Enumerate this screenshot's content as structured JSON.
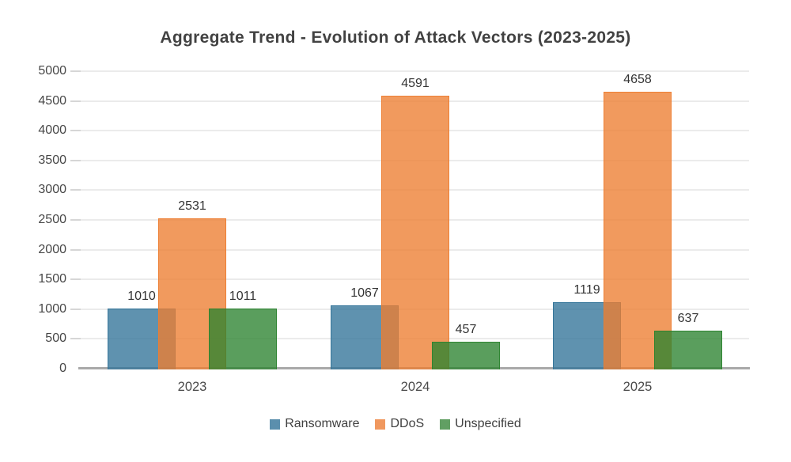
{
  "chart_data": {
    "type": "bar",
    "title": "Aggregate Trend - Evolution of Attack Vectors (2023-2025)",
    "categories": [
      "2023",
      "2024",
      "2025"
    ],
    "series": [
      {
        "name": "Ransomware",
        "values": [
          1010,
          1067,
          1119
        ],
        "fill": "rgba(50,115,152,0.78)",
        "border": "rgba(50,115,152,0.9)",
        "swatch": "#5b8fad"
      },
      {
        "name": "DDoS",
        "values": [
          2531,
          4591,
          4658
        ],
        "fill": "rgba(237,125,49,0.78)",
        "border": "rgba(237,125,49,0.9)",
        "swatch": "#f0985f"
      },
      {
        "name": "Unspecified",
        "values": [
          1011,
          457,
          637
        ],
        "fill": "rgba(43,131,47,0.78)",
        "border": "rgba(43,131,47,0.9)",
        "swatch": "#619f63"
      }
    ],
    "xlabel": "",
    "ylabel": "",
    "ylim": [
      0,
      5000
    ],
    "ytick_step": 500,
    "ytick_labels": [
      "0",
      "500",
      "1000",
      "1500",
      "2000",
      "2500",
      "3000",
      "3500",
      "4000",
      "4500",
      "5000"
    ],
    "grid": true,
    "data_labels": true,
    "legend_position": "bottom",
    "bar_style": "overlapping-translucent",
    "colors": {
      "gridline": "#ebebeb",
      "axis_line": "#a9a9a9",
      "title_text": "#424242",
      "tick_text": "#474747",
      "data_label_text": "#333333",
      "legend_text": "#404040",
      "background": "#ffffff"
    }
  }
}
